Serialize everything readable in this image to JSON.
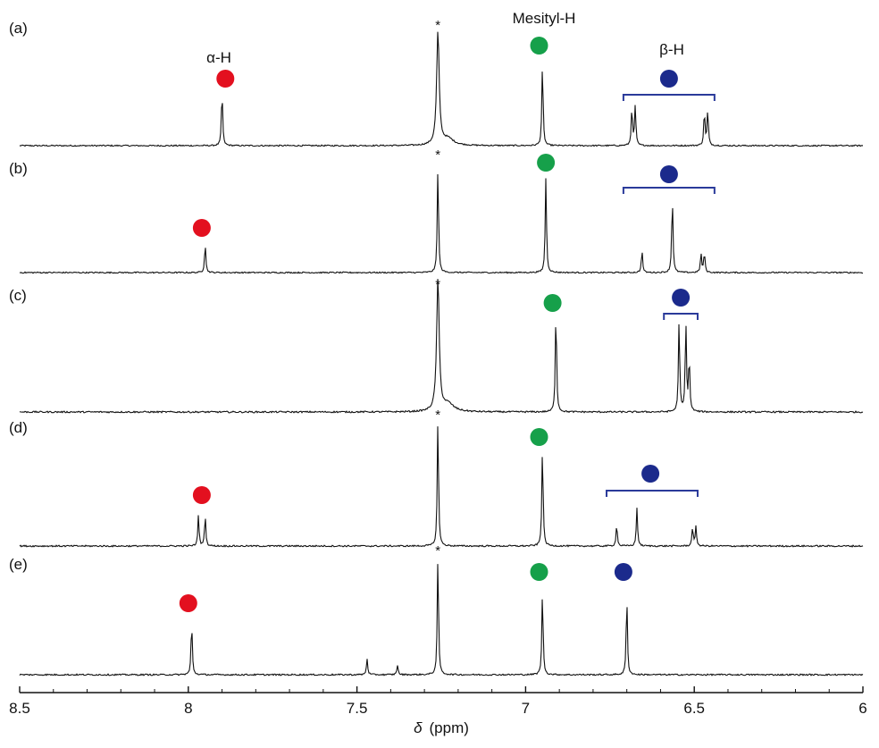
{
  "chart_data": {
    "type": "line",
    "description_free": true,
    "xlabel_symbol": "δ",
    "xlabel_unit": "(ppm)",
    "xlim": [
      8.5,
      6
    ],
    "xticks": [
      "8.5",
      "8",
      "7.5",
      "7",
      "6.5",
      "6"
    ],
    "tick_values": [
      8.5,
      8,
      7.5,
      7,
      6.5,
      6
    ],
    "grid": false,
    "annotations": {
      "alpha_label": "α-H",
      "mesityl_label": "Mesityl-H",
      "beta_label": "β-H",
      "solvent_marker": "*"
    },
    "colors": {
      "alpha": "#e3101f",
      "mesityl": "#16a04a",
      "beta": "#1b2a8c",
      "bracket": "#2a3a9a",
      "trace": "#111111"
    },
    "series": [
      {
        "label": "(a)",
        "peaks": [
          {
            "x": 7.9,
            "h": 0.48,
            "group": "alpha"
          },
          {
            "x": 7.26,
            "h": 1.0,
            "group": "solvent",
            "broad": true
          },
          {
            "x": 6.95,
            "h": 0.72,
            "group": "mesityl"
          },
          {
            "x": 6.685,
            "h": 0.33,
            "group": "beta"
          },
          {
            "x": 6.675,
            "h": 0.35,
            "group": "beta"
          },
          {
            "x": 6.47,
            "h": 0.3,
            "group": "beta"
          },
          {
            "x": 6.46,
            "h": 0.31,
            "group": "beta"
          }
        ],
        "markers": {
          "alpha": 7.89,
          "mesityl": 6.96,
          "beta": 6.575
        },
        "bracket": [
          6.71,
          6.44
        ]
      },
      {
        "label": "(b)",
        "peaks": [
          {
            "x": 7.95,
            "h": 0.26,
            "group": "alpha"
          },
          {
            "x": 7.26,
            "h": 0.95,
            "group": "solvent"
          },
          {
            "x": 6.94,
            "h": 0.85,
            "group": "mesityl"
          },
          {
            "x": 6.655,
            "h": 0.2,
            "group": "beta"
          },
          {
            "x": 6.565,
            "h": 0.68,
            "group": "beta"
          },
          {
            "x": 6.48,
            "h": 0.17,
            "group": "beta"
          },
          {
            "x": 6.47,
            "h": 0.18,
            "group": "beta"
          }
        ],
        "markers": {
          "alpha": 7.96,
          "mesityl": 6.94,
          "beta": 6.575
        },
        "bracket": [
          6.71,
          6.44
        ]
      },
      {
        "label": "(c)",
        "peaks": [
          {
            "x": 7.26,
            "h": 1.0,
            "group": "solvent",
            "broad": true
          },
          {
            "x": 6.91,
            "h": 0.78,
            "group": "mesityl"
          },
          {
            "x": 6.545,
            "h": 0.7,
            "group": "beta"
          },
          {
            "x": 6.525,
            "h": 0.67,
            "group": "beta"
          },
          {
            "x": 6.515,
            "h": 0.4,
            "group": "beta"
          }
        ],
        "markers": {
          "mesityl": 6.92,
          "beta": 6.54
        },
        "bracket": [
          6.59,
          6.49
        ]
      },
      {
        "label": "(d)",
        "peaks": [
          {
            "x": 7.97,
            "h": 0.24,
            "group": "alpha"
          },
          {
            "x": 7.95,
            "h": 0.24,
            "group": "alpha"
          },
          {
            "x": 7.26,
            "h": 1.0,
            "group": "solvent"
          },
          {
            "x": 6.95,
            "h": 0.78,
            "group": "mesityl"
          },
          {
            "x": 6.73,
            "h": 0.17,
            "group": "beta"
          },
          {
            "x": 6.67,
            "h": 0.3,
            "group": "beta"
          },
          {
            "x": 6.505,
            "h": 0.15,
            "group": "beta"
          },
          {
            "x": 6.495,
            "h": 0.15,
            "group": "beta"
          }
        ],
        "markers": {
          "alpha": 7.96,
          "mesityl": 6.96,
          "beta": 6.63
        },
        "bracket": [
          6.76,
          6.49
        ]
      },
      {
        "label": "(e)",
        "peaks": [
          {
            "x": 7.99,
            "h": 0.42,
            "group": "alpha"
          },
          {
            "x": 7.47,
            "h": 0.13,
            "group": "impurity"
          },
          {
            "x": 7.38,
            "h": 0.08,
            "group": "impurity"
          },
          {
            "x": 7.26,
            "h": 0.95,
            "group": "solvent"
          },
          {
            "x": 6.95,
            "h": 0.67,
            "group": "mesityl"
          },
          {
            "x": 6.7,
            "h": 0.62,
            "group": "beta"
          }
        ],
        "markers": {
          "alpha": 8.0,
          "mesityl": 6.96,
          "beta": 6.71
        },
        "bracket": null
      }
    ]
  }
}
